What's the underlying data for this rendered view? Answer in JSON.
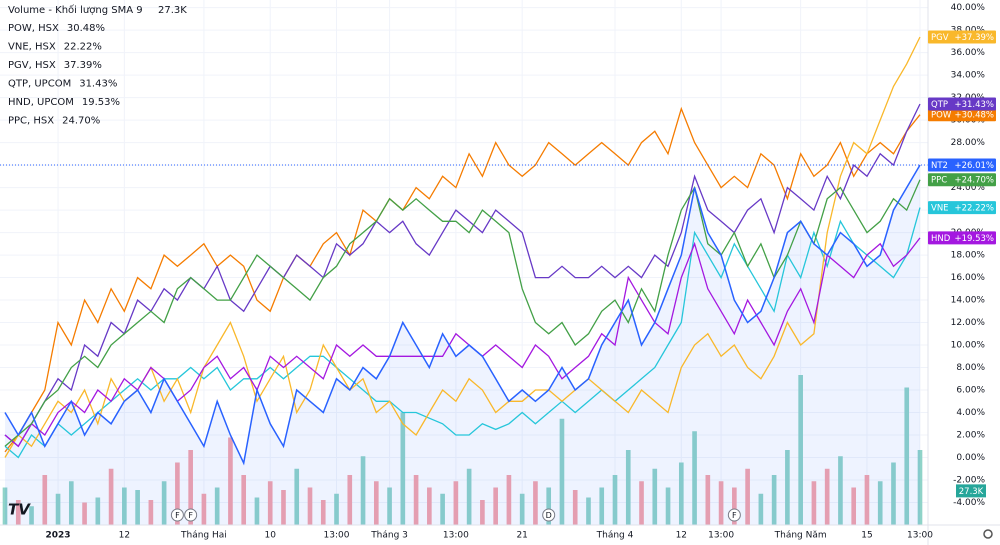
{
  "chart_data": {
    "type": "line",
    "categories": [
      null,
      null,
      null,
      null,
      "2023",
      null,
      null,
      null,
      null,
      "12",
      null,
      null,
      null,
      null,
      null,
      "Tháng Hai",
      null,
      null,
      null,
      null,
      "10",
      null,
      null,
      null,
      null,
      "13:00",
      null,
      null,
      null,
      "Tháng 3",
      null,
      null,
      null,
      null,
      "13:00",
      null,
      null,
      null,
      null,
      "21",
      null,
      null,
      null,
      null,
      null,
      null,
      "Tháng 4",
      null,
      null,
      null,
      null,
      "12",
      null,
      null,
      "13:00",
      null,
      null,
      null,
      null,
      null,
      "Tháng Năm",
      null,
      null,
      null,
      null,
      "15",
      null,
      null,
      null,
      "13:00"
    ],
    "events": [
      null,
      null,
      null,
      null,
      null,
      null,
      null,
      null,
      null,
      null,
      null,
      null,
      null,
      "F",
      "F",
      null,
      null,
      null,
      null,
      null,
      null,
      null,
      null,
      null,
      null,
      null,
      null,
      null,
      null,
      null,
      null,
      null,
      null,
      null,
      null,
      null,
      null,
      null,
      null,
      null,
      null,
      "D",
      null,
      null,
      null,
      null,
      null,
      null,
      null,
      null,
      null,
      null,
      null,
      null,
      null,
      "F",
      null,
      null,
      null,
      null,
      null,
      null,
      null,
      null,
      null,
      null,
      null,
      null,
      null,
      null
    ],
    "ylim": [
      -6,
      40.5
    ],
    "yticks": [
      {
        "value": -4,
        "label": "-4.00%"
      },
      {
        "value": -2,
        "label": "-2.00%"
      },
      {
        "value": 0,
        "label": "0.00%"
      },
      {
        "value": 2,
        "label": "2.00%"
      },
      {
        "value": 4,
        "label": "4.00%"
      },
      {
        "value": 6,
        "label": "6.00%"
      },
      {
        "value": 8,
        "label": "8.00%"
      },
      {
        "value": 10,
        "label": "10.00%"
      },
      {
        "value": 12,
        "label": "12.00%"
      },
      {
        "value": 14,
        "label": "14.00%"
      },
      {
        "value": 16,
        "label": "16.00%"
      },
      {
        "value": 18,
        "label": "18.00%"
      },
      {
        "value": 20,
        "label": "20.00%"
      },
      {
        "value": 22,
        "label": "22.00%"
      },
      {
        "value": 24,
        "label": "24.00%"
      },
      {
        "value": 26,
        "label": "26.00%"
      },
      {
        "value": 28,
        "label": "28.00%"
      },
      {
        "value": 30,
        "label": "30.00%"
      },
      {
        "value": 32,
        "label": "32.00%"
      },
      {
        "value": 34,
        "label": "34.00%"
      },
      {
        "value": 36,
        "label": "36.00%"
      },
      {
        "value": 38,
        "label": "38.00%"
      },
      {
        "value": 40,
        "label": "40.00%"
      }
    ],
    "grid": true,
    "volume": {
      "name": "Volume - Khối lượng SMA 9",
      "sma": 27.3,
      "sma_label": "27.3K",
      "up_color": "#8fd3c8",
      "down_color": "#f5a3ab",
      "label_color": "#26a69a",
      "values": [
        30,
        20,
        15,
        40,
        25,
        35,
        18,
        22,
        45,
        30,
        28,
        20,
        35,
        50,
        60,
        25,
        30,
        70,
        40,
        22,
        35,
        28,
        45,
        30,
        20,
        25,
        40,
        55,
        35,
        30,
        90,
        40,
        30,
        25,
        35,
        45,
        20,
        30,
        40,
        25,
        35,
        30,
        85,
        28,
        22,
        30,
        40,
        60,
        35,
        45,
        30,
        50,
        75,
        40,
        35,
        30,
        45,
        25,
        40,
        60,
        120,
        35,
        45,
        55,
        30,
        40,
        35,
        50,
        110,
        60
      ]
    },
    "main": {
      "name": "NT2",
      "badge": "+26.01%",
      "color": "#2962ff",
      "area_color": "rgba(41,98,255,0.08)",
      "values": [
        4,
        2,
        4,
        1,
        3,
        5,
        2,
        4,
        3,
        5,
        6,
        4,
        7,
        5,
        3,
        1,
        5,
        2,
        -0.5,
        6,
        3,
        1,
        6,
        5,
        4,
        7,
        6,
        8,
        7,
        9,
        12,
        10,
        8,
        11,
        9,
        10,
        9,
        7,
        5,
        6,
        5,
        6,
        8,
        6,
        7,
        10,
        12,
        14,
        10,
        12,
        15,
        18,
        24,
        20,
        18,
        14,
        12,
        13,
        16,
        20,
        21,
        19,
        18,
        20,
        19,
        17,
        18,
        22,
        24,
        26.01
      ]
    },
    "series": [
      {
        "name": "POW, HSX",
        "tag": "POW",
        "legend_value": "30.48%",
        "badge": "+30.48%",
        "color": "#f57c00",
        "values": [
          0.5,
          2,
          4,
          6,
          12,
          10,
          14,
          12,
          15,
          13,
          16,
          15,
          18,
          17,
          18,
          19,
          17,
          18,
          17,
          14,
          13,
          16,
          18,
          17,
          19,
          20,
          18,
          22,
          21,
          23,
          22,
          24,
          23,
          25,
          24,
          27,
          25,
          28,
          26,
          25,
          26,
          28,
          27,
          26,
          27,
          28,
          27,
          26,
          28,
          29,
          27,
          31,
          28,
          26,
          24,
          25,
          24,
          27,
          26,
          23,
          27,
          25,
          26,
          28,
          25,
          27,
          28,
          27,
          29,
          30.48
        ]
      },
      {
        "name": "VNE, HSX",
        "tag": "VNE",
        "legend_value": "22.22%",
        "badge": "+22.22%",
        "color": "#26c6da",
        "values": [
          1,
          0,
          2,
          1,
          3,
          2,
          3,
          4,
          5,
          6,
          7,
          6,
          7,
          7,
          8,
          7,
          8,
          6,
          7,
          7,
          8,
          7,
          8,
          9,
          9,
          8,
          7,
          6,
          5,
          5,
          4,
          4,
          3.5,
          3,
          2,
          2,
          3,
          2.5,
          3,
          4,
          3,
          4,
          5,
          4,
          5,
          6,
          5,
          6,
          7,
          8,
          10,
          12,
          20,
          18,
          16,
          19,
          17,
          15,
          13,
          18,
          16,
          20,
          17,
          21,
          19,
          18,
          17,
          16,
          18,
          22.22
        ]
      },
      {
        "name": "PGV, HSX",
        "tag": "PGV",
        "legend_value": "37.39%",
        "badge": "+37.39%",
        "color": "#f9b82b",
        "values": [
          0,
          2,
          1,
          3,
          5,
          4,
          6,
          3,
          7,
          5,
          6,
          8,
          5,
          7,
          4,
          8,
          10,
          12,
          9,
          5,
          7,
          9,
          4,
          6,
          10,
          8,
          6,
          7,
          4,
          5,
          3,
          2,
          4,
          6,
          5,
          7,
          6,
          4,
          5,
          5,
          6,
          6,
          5,
          6,
          7,
          6,
          5,
          4,
          6,
          5,
          4,
          8,
          10,
          11,
          9,
          10,
          8,
          7,
          9,
          12,
          10,
          11,
          20,
          25,
          28,
          27,
          30,
          33,
          35,
          37.39
        ]
      },
      {
        "name": "QTP, UPCOM",
        "tag": "QTP",
        "legend_value": "31.43%",
        "badge": "+31.43%",
        "color": "#6739c6",
        "values": [
          2,
          1,
          3,
          5,
          7,
          6,
          10,
          9,
          12,
          11,
          14,
          13,
          15,
          14,
          16,
          15,
          17,
          14,
          13,
          15,
          17,
          16,
          18,
          17,
          16,
          19,
          18,
          19,
          21,
          20,
          21,
          19,
          18,
          20,
          22,
          21,
          20,
          22,
          21,
          20,
          16,
          16,
          17,
          16,
          16,
          17,
          16,
          17,
          16,
          18,
          17,
          20,
          25,
          22,
          21,
          20,
          22,
          23,
          20,
          24,
          23,
          22,
          25,
          23,
          26,
          25,
          27,
          26,
          29,
          31.43
        ]
      },
      {
        "name": "HND, UPCOM",
        "tag": "HND",
        "legend_value": "19.53%",
        "badge": "+19.53%",
        "color": "#a418e0",
        "values": [
          2,
          1,
          3,
          2,
          4,
          5,
          4,
          6,
          5,
          7,
          6,
          8,
          7,
          5,
          6,
          8,
          9,
          7,
          8,
          6,
          9,
          8,
          9,
          8,
          7,
          10,
          9,
          10,
          9,
          9,
          9,
          9,
          9,
          9,
          11,
          10,
          9,
          10,
          9,
          8,
          10,
          9,
          7,
          8,
          9,
          11,
          10,
          16,
          14,
          12,
          11,
          16,
          19,
          15,
          13,
          11,
          14,
          12,
          10,
          13,
          15,
          12,
          18,
          17,
          16,
          18,
          19,
          17,
          18,
          19.53
        ]
      },
      {
        "name": "PPC, HSX",
        "tag": "PPC",
        "legend_value": "24.70%",
        "badge": "+24.70%",
        "color": "#43a047",
        "values": [
          1,
          2,
          3,
          5,
          6,
          8,
          9,
          8,
          10,
          11,
          12,
          13,
          12,
          15,
          16,
          15,
          14,
          14,
          16,
          18,
          17,
          16,
          15,
          14,
          16,
          17,
          19,
          20,
          21,
          23,
          22,
          23,
          22,
          21,
          21,
          20,
          22,
          21,
          20,
          15,
          12,
          11,
          12,
          10,
          11,
          13,
          14,
          12,
          15,
          13,
          18,
          22,
          24,
          19,
          18,
          20,
          17,
          19,
          16,
          18,
          21,
          19,
          23,
          24,
          22,
          20,
          21,
          23,
          22,
          24.7
        ]
      }
    ]
  }
}
